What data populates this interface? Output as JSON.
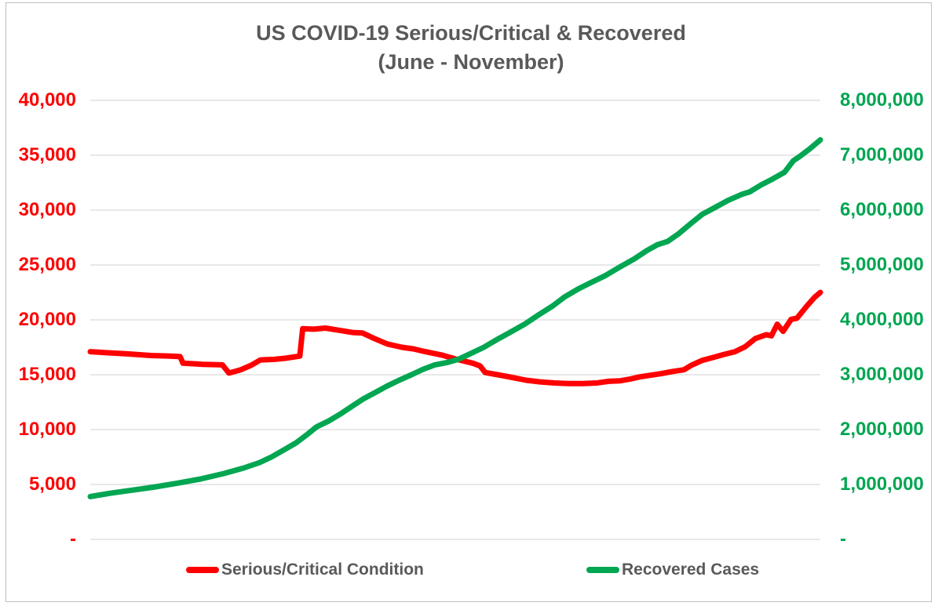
{
  "colors": {
    "title_text": "#595959",
    "gridline": "#d9d9d9",
    "frame_border": "#bfbfbf",
    "left_axis": "#ff0000",
    "right_axis": "#00a651"
  },
  "chart_data": {
    "type": "line",
    "title": "US COVID-19 Serious/Critical & Recovered",
    "subtitle": "(June - November)",
    "xlabel": "",
    "x_tick_labels": [],
    "grid": true,
    "legend_position": "bottom",
    "y_left": {
      "color": "#ff0000",
      "min": 0,
      "max": 40000,
      "ticks": [
        "40,000",
        "35,000",
        "30,000",
        "25,000",
        "20,000",
        "15,000",
        "10,000",
        "5,000",
        "-"
      ]
    },
    "y_right": {
      "color": "#00a651",
      "min": 0,
      "max": 8000000,
      "ticks": [
        "8,000,000",
        "7,000,000",
        "6,000,000",
        "5,000,000",
        "4,000,000",
        "3,000,000",
        "2,000,000",
        "1,000,000",
        "-"
      ]
    },
    "series": [
      {
        "name": "Serious/Critical Condition",
        "axis": "left",
        "color": "#ff0000",
        "points": [
          [
            0.0,
            17100
          ],
          [
            0.024,
            17000
          ],
          [
            0.051,
            16900
          ],
          [
            0.083,
            16750
          ],
          [
            0.11,
            16700
          ],
          [
            0.123,
            16650
          ],
          [
            0.127,
            16050
          ],
          [
            0.154,
            15950
          ],
          [
            0.181,
            15900
          ],
          [
            0.19,
            15150
          ],
          [
            0.206,
            15450
          ],
          [
            0.22,
            15850
          ],
          [
            0.233,
            16350
          ],
          [
            0.252,
            16400
          ],
          [
            0.267,
            16500
          ],
          [
            0.287,
            16700
          ],
          [
            0.291,
            19200
          ],
          [
            0.306,
            19150
          ],
          [
            0.322,
            19250
          ],
          [
            0.341,
            19050
          ],
          [
            0.359,
            18850
          ],
          [
            0.373,
            18800
          ],
          [
            0.389,
            18300
          ],
          [
            0.407,
            17800
          ],
          [
            0.427,
            17500
          ],
          [
            0.443,
            17350
          ],
          [
            0.459,
            17100
          ],
          [
            0.481,
            16800
          ],
          [
            0.502,
            16400
          ],
          [
            0.524,
            16050
          ],
          [
            0.534,
            15800
          ],
          [
            0.541,
            15200
          ],
          [
            0.558,
            15000
          ],
          [
            0.578,
            14750
          ],
          [
            0.597,
            14500
          ],
          [
            0.616,
            14350
          ],
          [
            0.636,
            14250
          ],
          [
            0.655,
            14200
          ],
          [
            0.675,
            14200
          ],
          [
            0.694,
            14250
          ],
          [
            0.71,
            14400
          ],
          [
            0.726,
            14450
          ],
          [
            0.739,
            14600
          ],
          [
            0.752,
            14800
          ],
          [
            0.767,
            14950
          ],
          [
            0.782,
            15100
          ],
          [
            0.798,
            15300
          ],
          [
            0.813,
            15450
          ],
          [
            0.823,
            15850
          ],
          [
            0.838,
            16300
          ],
          [
            0.852,
            16550
          ],
          [
            0.868,
            16850
          ],
          [
            0.883,
            17100
          ],
          [
            0.897,
            17550
          ],
          [
            0.911,
            18300
          ],
          [
            0.926,
            18650
          ],
          [
            0.933,
            18550
          ],
          [
            0.941,
            19600
          ],
          [
            0.949,
            18950
          ],
          [
            0.96,
            20050
          ],
          [
            0.968,
            20150
          ],
          [
            0.982,
            21300
          ],
          [
            0.992,
            22050
          ],
          [
            1.0,
            22500
          ]
        ]
      },
      {
        "name": "Recovered Cases",
        "axis": "right",
        "color": "#00a651",
        "points": [
          [
            0.0,
            780000
          ],
          [
            0.027,
            840000
          ],
          [
            0.054,
            890000
          ],
          [
            0.086,
            950000
          ],
          [
            0.118,
            1020000
          ],
          [
            0.151,
            1100000
          ],
          [
            0.183,
            1200000
          ],
          [
            0.21,
            1300000
          ],
          [
            0.232,
            1400000
          ],
          [
            0.248,
            1500000
          ],
          [
            0.264,
            1620000
          ],
          [
            0.282,
            1760000
          ],
          [
            0.296,
            1900000
          ],
          [
            0.31,
            2050000
          ],
          [
            0.327,
            2160000
          ],
          [
            0.342,
            2280000
          ],
          [
            0.358,
            2420000
          ],
          [
            0.374,
            2560000
          ],
          [
            0.391,
            2680000
          ],
          [
            0.406,
            2790000
          ],
          [
            0.423,
            2900000
          ],
          [
            0.44,
            3000000
          ],
          [
            0.456,
            3100000
          ],
          [
            0.472,
            3180000
          ],
          [
            0.488,
            3220000
          ],
          [
            0.504,
            3280000
          ],
          [
            0.52,
            3380000
          ],
          [
            0.539,
            3500000
          ],
          [
            0.557,
            3640000
          ],
          [
            0.576,
            3780000
          ],
          [
            0.596,
            3930000
          ],
          [
            0.614,
            4090000
          ],
          [
            0.633,
            4250000
          ],
          [
            0.65,
            4420000
          ],
          [
            0.668,
            4560000
          ],
          [
            0.686,
            4680000
          ],
          [
            0.706,
            4810000
          ],
          [
            0.725,
            4960000
          ],
          [
            0.745,
            5110000
          ],
          [
            0.762,
            5260000
          ],
          [
            0.777,
            5370000
          ],
          [
            0.791,
            5430000
          ],
          [
            0.806,
            5570000
          ],
          [
            0.823,
            5760000
          ],
          [
            0.838,
            5920000
          ],
          [
            0.856,
            6050000
          ],
          [
            0.874,
            6180000
          ],
          [
            0.893,
            6290000
          ],
          [
            0.903,
            6330000
          ],
          [
            0.919,
            6460000
          ],
          [
            0.935,
            6570000
          ],
          [
            0.951,
            6690000
          ],
          [
            0.963,
            6900000
          ],
          [
            0.971,
            6970000
          ],
          [
            0.985,
            7110000
          ],
          [
            1.0,
            7280000
          ]
        ]
      }
    ]
  }
}
